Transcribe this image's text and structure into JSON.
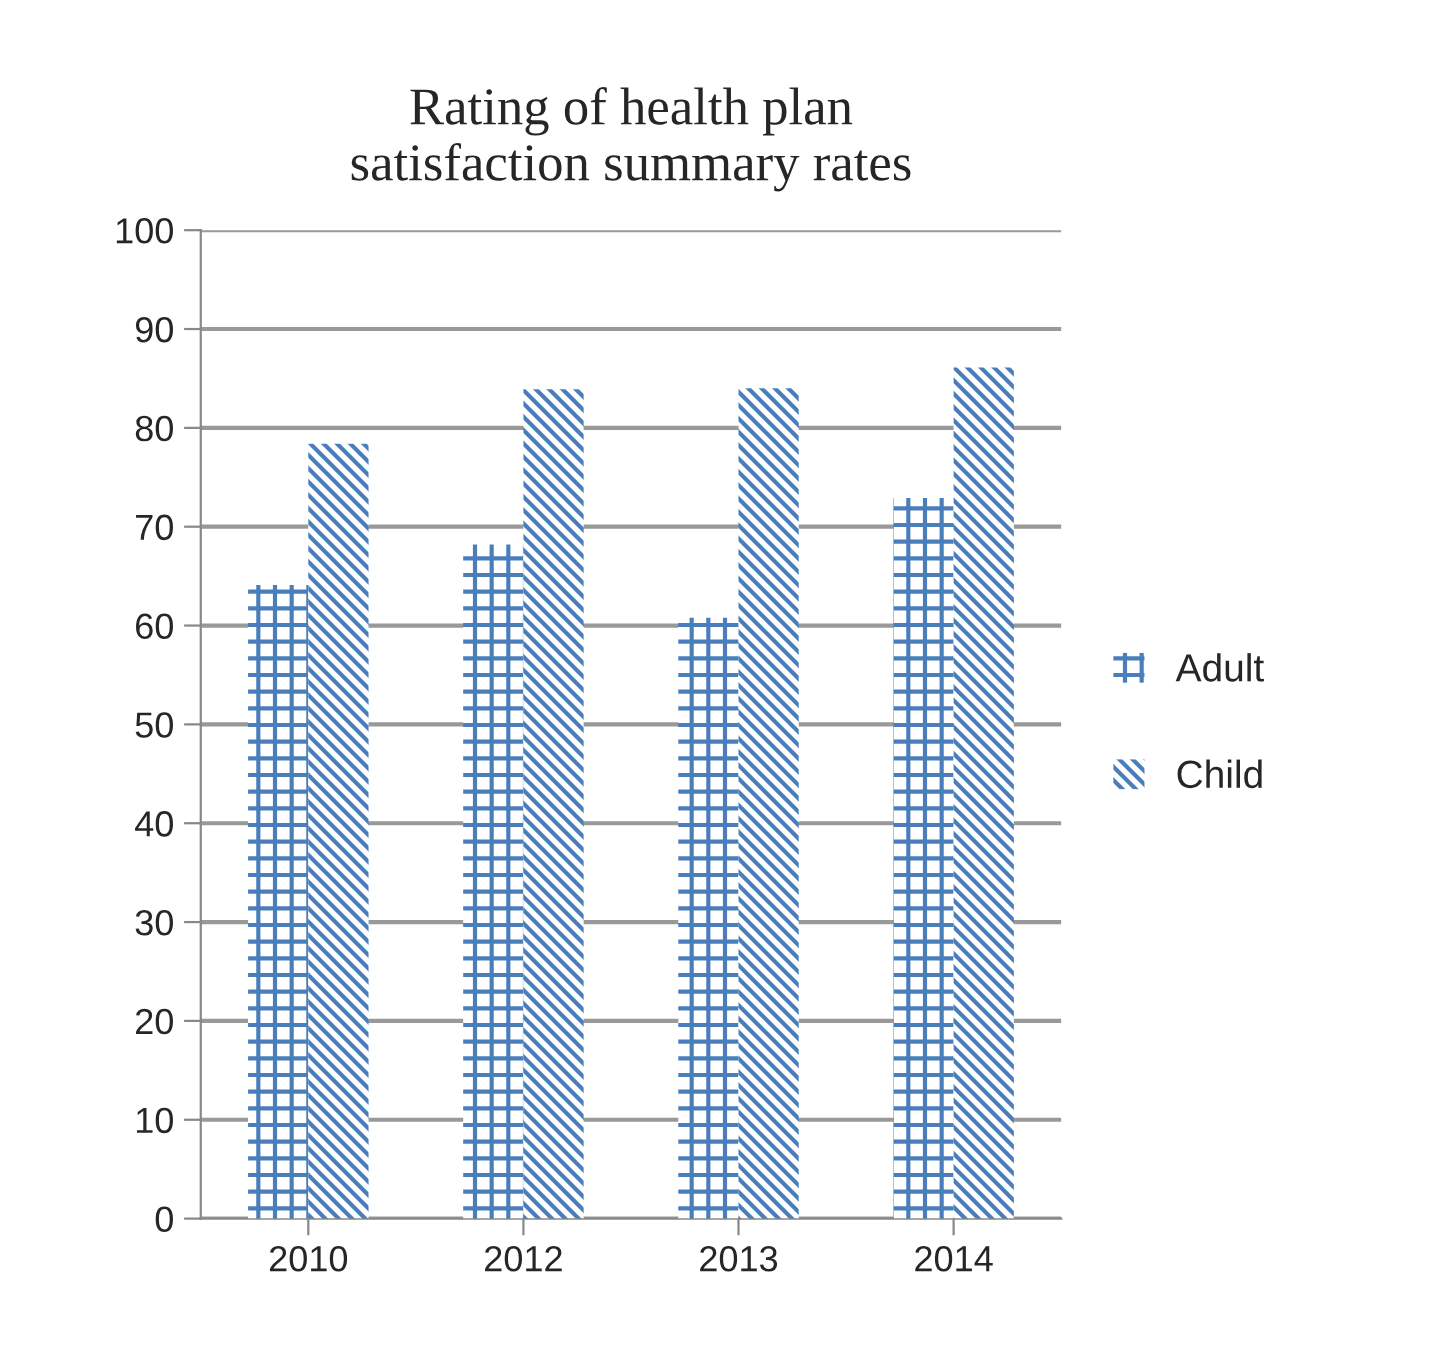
{
  "chart_data": {
    "type": "bar",
    "title": "Rating of health plan\nsatisfaction summary rates",
    "categories": [
      "2010",
      "2012",
      "2013",
      "2014"
    ],
    "series": [
      {
        "name": "Adult",
        "color": "#4a7ebb",
        "values": [
          64.1,
          68.2,
          60.8,
          72.9
        ]
      },
      {
        "name": "Child",
        "color": "#4a7ebb",
        "values": [
          78.4,
          83.9,
          84,
          86.1
        ]
      }
    ],
    "ylim": [
      0,
      100
    ],
    "yticks": [
      0,
      10,
      20,
      30,
      40,
      50,
      60,
      70,
      80,
      90,
      100
    ],
    "grid": "y",
    "legend": "right"
  }
}
